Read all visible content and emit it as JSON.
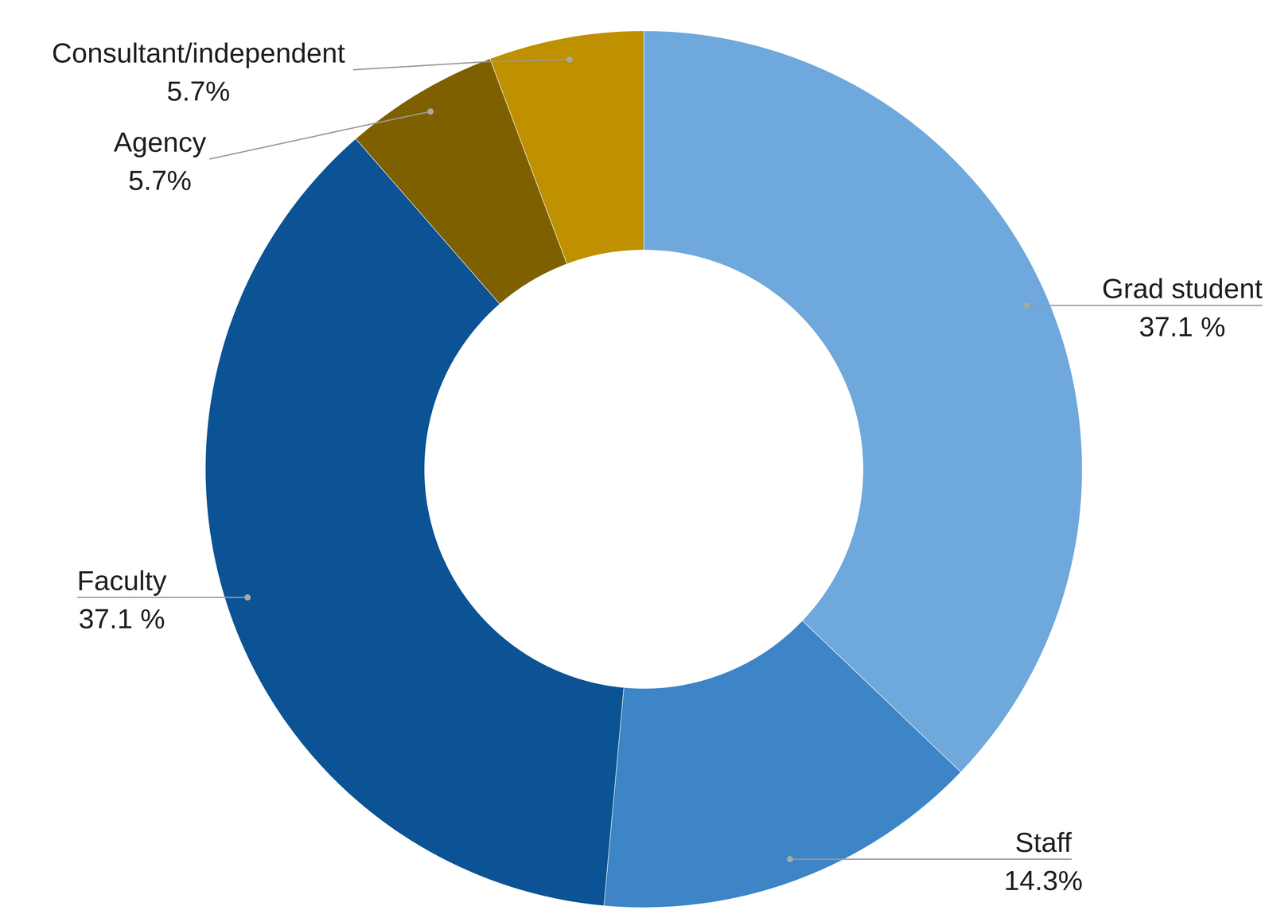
{
  "chart_data": {
    "type": "pie",
    "categories": [
      "Grad student",
      "Staff",
      "Faculty",
      "Agency",
      "Consultant/independent"
    ],
    "values": [
      37.1,
      14.3,
      37.1,
      5.7,
      5.7
    ],
    "value_labels": [
      "37.1 %",
      "14.3%",
      "37.1 %",
      "5.7%",
      "5.7%"
    ],
    "colors": [
      "#6fa8dc",
      "#3d85c6",
      "#0b5394",
      "#7f6000",
      "#bf9000"
    ],
    "data_labels": true
  }
}
